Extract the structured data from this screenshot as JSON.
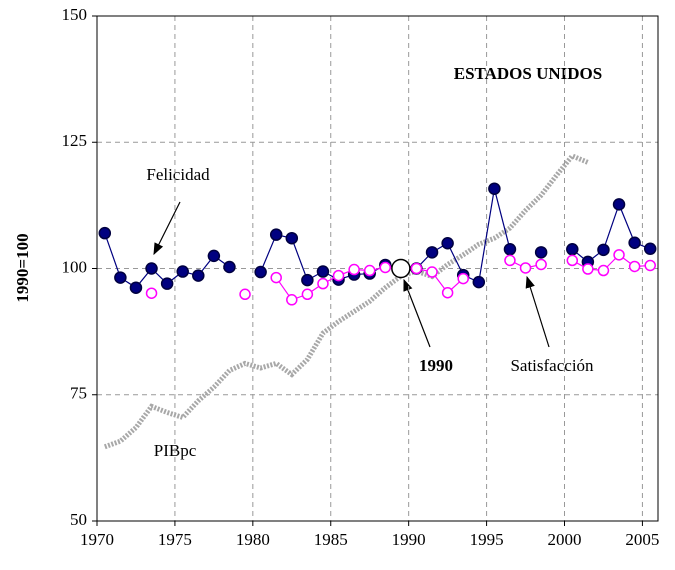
{
  "chart_data": {
    "type": "line",
    "y_label": "1990=100",
    "annotations": [
      "ESTADOS UNIDOS",
      "Felicidad",
      "1990",
      "Satisfacción",
      "PIBpc"
    ],
    "x": [
      1970.5,
      1971.5,
      1972.5,
      1973.5,
      1974.5,
      1975.5,
      1976.5,
      1977.5,
      1978.5,
      1979.5,
      1980.5,
      1981.5,
      1982.5,
      1983.5,
      1984.5,
      1985.5,
      1986.5,
      1987.5,
      1988.5,
      1989.5,
      1990.5,
      1991.5,
      1992.5,
      1993.5,
      1994.5,
      1995.5,
      1996.5,
      1997.5,
      1998.5,
      1999.5,
      2000.5,
      2001.5,
      2002.5,
      2003.5,
      2004.5,
      2005.5
    ],
    "series": [
      {
        "name": "PIBpc",
        "color": "#a8a8a8",
        "values": [
          64.7,
          65.8,
          68.5,
          72.7,
          71.5,
          70.5,
          73.8,
          76.5,
          79.8,
          81.2,
          80.3,
          81.2,
          79,
          82,
          87.2,
          89.5,
          91.5,
          93.5,
          96.2,
          98.5,
          99.5,
          98.4,
          100.8,
          102.7,
          104.8,
          106,
          108,
          111.5,
          114.5,
          118.5,
          122.3,
          121,
          null,
          null,
          null,
          null
        ]
      },
      {
        "name": "Felicidad",
        "color": "#000080",
        "values": [
          107,
          98.2,
          96.2,
          100,
          97,
          99.4,
          98.6,
          102.5,
          100.3,
          null,
          99.3,
          106.7,
          106,
          97.7,
          99.4,
          97.8,
          98.8,
          99,
          100.7,
          100,
          100,
          103.2,
          105,
          98.7,
          97.3,
          115.8,
          103.8,
          null,
          103.2,
          null,
          103.8,
          101.3,
          103.7,
          112.7,
          105.1,
          103.9
        ]
      },
      {
        "name": "Satisfacción",
        "color": "#ff00ff",
        "values": [
          null,
          null,
          null,
          95.1,
          null,
          null,
          null,
          null,
          null,
          94.9,
          null,
          98.2,
          93.8,
          94.9,
          97,
          98.6,
          99.8,
          99.6,
          100.2,
          100,
          100,
          99.3,
          95.2,
          98,
          null,
          null,
          101.6,
          100.1,
          100.8,
          null,
          101.6,
          99.9,
          99.6,
          102.7,
          100.4,
          100.6
        ]
      }
    ],
    "base_point": {
      "x": 1989.5,
      "y": 100
    },
    "xlim": [
      1970,
      2006
    ],
    "xticks": [
      1970,
      1975,
      1980,
      1985,
      1990,
      1995,
      2000,
      2005
    ],
    "ylim": [
      50,
      150
    ],
    "yticks": [
      50,
      75,
      100,
      125,
      150
    ],
    "grid": true
  }
}
